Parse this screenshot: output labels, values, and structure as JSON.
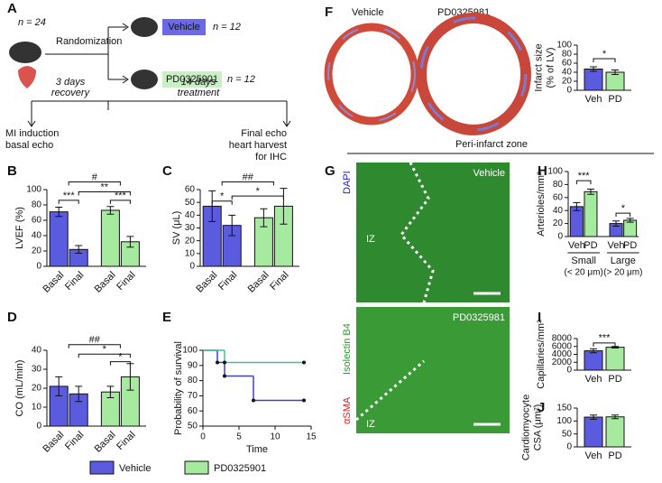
{
  "diagram": {
    "n_total": "n = 24",
    "randomization": "Randomization",
    "vehicle": "Vehicle",
    "n_vehicle": "n = 12",
    "pd": "PD0325901",
    "n_pd": "n = 12",
    "phase1": "3 days",
    "phase1_note": "recovery",
    "phase2": "14 days",
    "phase2_note": "treatment",
    "start": [
      "MI induction",
      "basal echo"
    ],
    "end": [
      "Final echo",
      "heart harvest",
      "for IHC"
    ]
  },
  "panel_labels": {
    "A": "A",
    "F": "F",
    "G": "G"
  },
  "images": {
    "f_vehicle": "Vehicle",
    "f_pd": "PD0325981",
    "zone": "Peri-infarct zone",
    "g_vehicle": "Vehicle",
    "g_pd": "PD0325981",
    "iz_top": "IZ",
    "iz_bottom": "IZ",
    "stain_red": "αSMA",
    "stain_green": "Isolectin B4",
    "stain_blue": "DAPI"
  },
  "legend": [
    {
      "name": "Vehicle",
      "color": "#5b5be0"
    },
    {
      "name": "PD0325901",
      "color": "#a6eaa0"
    }
  ],
  "chart_data": [
    {
      "type": "bar",
      "label": "B",
      "ylabel": [
        "LVEF (%)"
      ],
      "categories": [
        "Basal",
        "Final",
        "Basal",
        "Final"
      ],
      "values": [
        71,
        22,
        73,
        32
      ],
      "errors": [
        6,
        5,
        5,
        7
      ],
      "colors": [
        "#5b5be0",
        "#5b5be0",
        "#a6eaa0",
        "#a6eaa0"
      ],
      "ylim": [
        0,
        100
      ],
      "yticks": [
        0,
        20,
        40,
        60,
        80,
        100
      ],
      "annotations": [
        "***",
        "**",
        "***",
        "#"
      ]
    },
    {
      "type": "bar",
      "label": "C",
      "ylabel": [
        "SV (μL)"
      ],
      "categories": [
        "Basal",
        "Final",
        "Basal",
        "Final"
      ],
      "values": [
        47,
        32,
        38,
        47
      ],
      "errors": [
        12,
        8,
        7,
        14
      ],
      "colors": [
        "#5b5be0",
        "#5b5be0",
        "#a6eaa0",
        "#a6eaa0"
      ],
      "ylim": [
        0,
        60
      ],
      "yticks": [
        0,
        10,
        20,
        30,
        40,
        50,
        60
      ],
      "annotations": [
        "*",
        "*",
        "##"
      ]
    },
    {
      "type": "bar",
      "label": "D",
      "ylabel": [
        "CO (mL/min)"
      ],
      "categories": [
        "Basal",
        "Final",
        "Basal",
        "Final"
      ],
      "values": [
        21,
        17,
        18,
        26
      ],
      "errors": [
        5,
        4,
        3,
        7
      ],
      "colors": [
        "#5b5be0",
        "#5b5be0",
        "#a6eaa0",
        "#a6eaa0"
      ],
      "ylim": [
        0,
        40
      ],
      "yticks": [
        0,
        10,
        20,
        30,
        40
      ],
      "annotations": [
        "##",
        "*",
        "*"
      ]
    },
    {
      "type": "step",
      "label": "E",
      "ylabel": [
        "Probability of survival"
      ],
      "xlabel": "Time",
      "xlim": [
        0,
        15
      ],
      "xticks": [
        0,
        5,
        10,
        15
      ],
      "ylim": [
        50,
        100
      ],
      "yticks": [
        50,
        60,
        70,
        80,
        90,
        100
      ],
      "series": [
        {
          "color": "#4040c0",
          "x": [
            0,
            2,
            3,
            7,
            14
          ],
          "values": [
            100,
            92,
            83,
            67,
            67
          ]
        },
        {
          "color": "#40c0a0",
          "x": [
            0,
            3,
            14
          ],
          "values": [
            100,
            92,
            92
          ]
        }
      ]
    },
    {
      "type": "bar",
      "label": "",
      "ylabel": [
        "Infarct size",
        "(% of LV)"
      ],
      "categories": [
        "Veh",
        "PD"
      ],
      "values": [
        47,
        40
      ],
      "errors": [
        5,
        5
      ],
      "colors": [
        "#5b5be0",
        "#a6eaa0"
      ],
      "ylim": [
        0,
        100
      ],
      "yticks": [
        0,
        20,
        40,
        60,
        80,
        100
      ],
      "annotations": [
        "*"
      ]
    },
    {
      "type": "bar",
      "label": "H",
      "ylabel": [
        "Arterioles/mm²"
      ],
      "categories": [
        "Veh",
        "PD",
        "Veh",
        "PD"
      ],
      "values": [
        46,
        69,
        20,
        25
      ],
      "errors": [
        6,
        4,
        4,
        3
      ],
      "colors": [
        "#5b5be0",
        "#a6eaa0",
        "#5b5be0",
        "#a6eaa0"
      ],
      "ylim": [
        0,
        100
      ],
      "yticks": [
        0,
        20,
        40,
        60,
        80,
        100
      ],
      "annotations": [
        "***",
        "*"
      ],
      "groups": [
        {
          "name": "Small",
          "note": "(< 20 μm)"
        },
        {
          "name": "Large",
          "note": "(> 20 μm)"
        }
      ]
    },
    {
      "type": "bar",
      "label": "I",
      "ylabel": [
        "Capillaries/mm²"
      ],
      "categories": [
        "Veh",
        "PD"
      ],
      "values": [
        4900,
        5800
      ],
      "errors": [
        500,
        200
      ],
      "colors": [
        "#5b5be0",
        "#a6eaa0"
      ],
      "ylim": [
        0,
        8000
      ],
      "yticks": [
        0,
        2000,
        4000,
        6000,
        8000
      ],
      "annotations": [
        "***"
      ]
    },
    {
      "type": "bar",
      "label": "J",
      "ylabel": [
        "Cardiomyocyte",
        "CSA (μm²)"
      ],
      "categories": [
        "Veh",
        "PD"
      ],
      "values": [
        115,
        116
      ],
      "errors": [
        8,
        7
      ],
      "colors": [
        "#5b5be0",
        "#a6eaa0"
      ],
      "ylim": [
        0,
        150
      ],
      "yticks": [
        0,
        50,
        100,
        150
      ],
      "annotations": []
    }
  ]
}
